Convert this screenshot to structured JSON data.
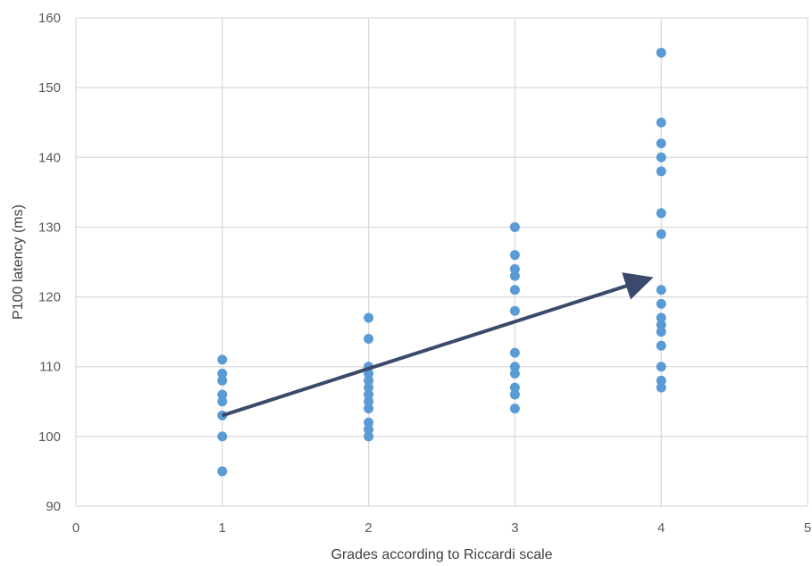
{
  "chart_data": {
    "type": "scatter",
    "title": "",
    "xlabel": "Grades according to Riccardi scale",
    "ylabel": "P100 latency (ms)",
    "xlim": [
      0,
      5
    ],
    "ylim": [
      90,
      160
    ],
    "xticks": [
      0,
      1,
      2,
      3,
      4,
      5
    ],
    "yticks": [
      90,
      100,
      110,
      120,
      130,
      140,
      150,
      160
    ],
    "grid": true,
    "legend": "none",
    "marker_color": "#5B9BD5",
    "arrow_color": "#3B4A6B",
    "points": [
      {
        "x": 1,
        "y": 111
      },
      {
        "x": 1,
        "y": 109
      },
      {
        "x": 1,
        "y": 108
      },
      {
        "x": 1,
        "y": 106
      },
      {
        "x": 1,
        "y": 105
      },
      {
        "x": 1,
        "y": 103
      },
      {
        "x": 1,
        "y": 100
      },
      {
        "x": 1,
        "y": 95
      },
      {
        "x": 2,
        "y": 117
      },
      {
        "x": 2,
        "y": 114
      },
      {
        "x": 2,
        "y": 110
      },
      {
        "x": 2,
        "y": 109
      },
      {
        "x": 2,
        "y": 108
      },
      {
        "x": 2,
        "y": 107
      },
      {
        "x": 2,
        "y": 106
      },
      {
        "x": 2,
        "y": 105
      },
      {
        "x": 2,
        "y": 104
      },
      {
        "x": 2,
        "y": 102
      },
      {
        "x": 2,
        "y": 101
      },
      {
        "x": 2,
        "y": 100
      },
      {
        "x": 3,
        "y": 130
      },
      {
        "x": 3,
        "y": 126
      },
      {
        "x": 3,
        "y": 124
      },
      {
        "x": 3,
        "y": 123
      },
      {
        "x": 3,
        "y": 121
      },
      {
        "x": 3,
        "y": 118
      },
      {
        "x": 3,
        "y": 112
      },
      {
        "x": 3,
        "y": 110
      },
      {
        "x": 3,
        "y": 109
      },
      {
        "x": 3,
        "y": 107
      },
      {
        "x": 3,
        "y": 106
      },
      {
        "x": 3,
        "y": 104
      },
      {
        "x": 4,
        "y": 155
      },
      {
        "x": 4,
        "y": 145
      },
      {
        "x": 4,
        "y": 142
      },
      {
        "x": 4,
        "y": 140
      },
      {
        "x": 4,
        "y": 138
      },
      {
        "x": 4,
        "y": 132
      },
      {
        "x": 4,
        "y": 129
      },
      {
        "x": 4,
        "y": 121
      },
      {
        "x": 4,
        "y": 119
      },
      {
        "x": 4,
        "y": 117
      },
      {
        "x": 4,
        "y": 116
      },
      {
        "x": 4,
        "y": 115
      },
      {
        "x": 4,
        "y": 113
      },
      {
        "x": 4,
        "y": 110
      },
      {
        "x": 4,
        "y": 108
      },
      {
        "x": 4,
        "y": 107
      }
    ],
    "annotations": [
      {
        "type": "arrow",
        "from": {
          "x": 1,
          "y": 103
        },
        "to": {
          "x": 3.9,
          "y": 122.5
        }
      }
    ]
  }
}
